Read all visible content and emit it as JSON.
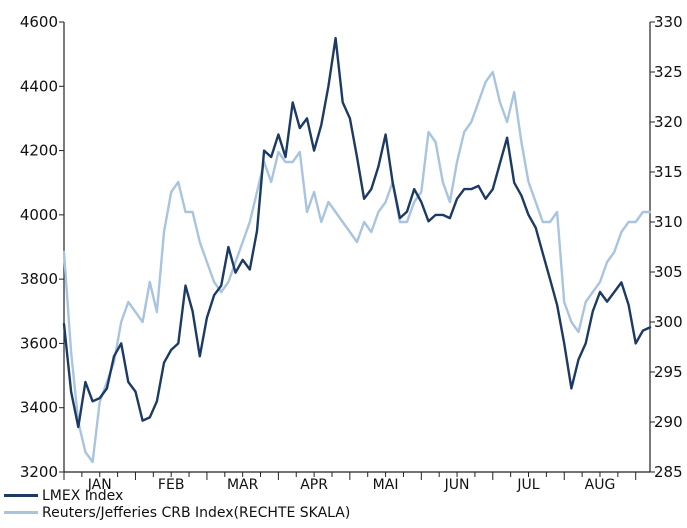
{
  "chart_data": {
    "type": "line",
    "title": "",
    "xlabel": "",
    "ylabel": "",
    "x_ticks": [
      "JAN",
      "FEB",
      "MAR",
      "APR",
      "MAI",
      "JUN",
      "JUL",
      "AUG"
    ],
    "x_range": [
      0,
      8.2
    ],
    "y_left": {
      "range": [
        3200,
        4600
      ],
      "ticks": [
        3200,
        3400,
        3600,
        3800,
        4000,
        4200,
        4400,
        4600
      ]
    },
    "y_right": {
      "range": [
        285,
        330
      ],
      "ticks": [
        285,
        290,
        295,
        300,
        305,
        310,
        315,
        320,
        325,
        330
      ]
    },
    "legend_position": "bottom-left",
    "grid": false,
    "series": [
      {
        "name": "LMEX Index",
        "axis": "left",
        "color": "#1c3a66",
        "x": [
          0.0,
          0.1,
          0.2,
          0.3,
          0.4,
          0.5,
          0.6,
          0.7,
          0.8,
          0.9,
          1.0,
          1.1,
          1.2,
          1.3,
          1.4,
          1.5,
          1.6,
          1.7,
          1.8,
          1.9,
          2.0,
          2.1,
          2.2,
          2.3,
          2.4,
          2.5,
          2.6,
          2.7,
          2.8,
          2.9,
          3.0,
          3.1,
          3.2,
          3.3,
          3.4,
          3.5,
          3.6,
          3.7,
          3.8,
          3.9,
          4.0,
          4.1,
          4.2,
          4.3,
          4.4,
          4.5,
          4.6,
          4.7,
          4.8,
          4.9,
          5.0,
          5.1,
          5.2,
          5.3,
          5.4,
          5.5,
          5.6,
          5.7,
          5.8,
          5.9,
          6.0,
          6.1,
          6.2,
          6.3,
          6.4,
          6.5,
          6.6,
          6.7,
          6.8,
          6.9,
          7.0,
          7.1,
          7.2,
          7.3,
          7.4,
          7.5,
          7.6,
          7.7,
          7.8,
          7.9,
          8.0,
          8.1,
          8.2
        ],
        "y": [
          3660,
          3450,
          3340,
          3480,
          3420,
          3430,
          3460,
          3560,
          3600,
          3480,
          3450,
          3360,
          3370,
          3420,
          3540,
          3580,
          3600,
          3780,
          3700,
          3560,
          3680,
          3750,
          3780,
          3900,
          3820,
          3860,
          3830,
          3950,
          4200,
          4180,
          4250,
          4180,
          4350,
          4270,
          4300,
          4200,
          4280,
          4400,
          4550,
          4350,
          4300,
          4180,
          4050,
          4080,
          4150,
          4250,
          4100,
          3990,
          4010,
          4080,
          4040,
          3980,
          4000,
          4000,
          3990,
          4050,
          4080,
          4080,
          4090,
          4050,
          4080,
          4160,
          4240,
          4100,
          4060,
          4000,
          3960,
          3880,
          3800,
          3720,
          3600,
          3460,
          3550,
          3600,
          3700,
          3760,
          3730,
          3760,
          3790,
          3720,
          3600,
          3640,
          3650
        ]
      },
      {
        "name": "Reuters/Jefferies CRB Index(RECHTE SKALA)",
        "axis": "right",
        "color": "#a9c4df",
        "x": [
          0.0,
          0.1,
          0.2,
          0.3,
          0.4,
          0.5,
          0.6,
          0.7,
          0.8,
          0.9,
          1.0,
          1.1,
          1.2,
          1.3,
          1.4,
          1.5,
          1.6,
          1.7,
          1.8,
          1.9,
          2.0,
          2.1,
          2.2,
          2.3,
          2.4,
          2.5,
          2.6,
          2.7,
          2.8,
          2.9,
          3.0,
          3.1,
          3.2,
          3.3,
          3.4,
          3.5,
          3.6,
          3.7,
          3.8,
          3.9,
          4.0,
          4.1,
          4.2,
          4.3,
          4.4,
          4.5,
          4.6,
          4.7,
          4.8,
          4.9,
          5.0,
          5.1,
          5.2,
          5.3,
          5.4,
          5.5,
          5.6,
          5.7,
          5.8,
          5.9,
          6.0,
          6.1,
          6.2,
          6.3,
          6.4,
          6.5,
          6.6,
          6.7,
          6.8,
          6.9,
          7.0,
          7.1,
          7.2,
          7.3,
          7.4,
          7.5,
          7.6,
          7.7,
          7.8,
          7.9,
          8.0,
          8.1,
          8.2
        ],
        "y": [
          307,
          297,
          290,
          287,
          286,
          292,
          294,
          296,
          300,
          302,
          301,
          300,
          304,
          301,
          309,
          313,
          314,
          311,
          311,
          308,
          306,
          304,
          303,
          304,
          306,
          308,
          310,
          313,
          316,
          314,
          317,
          316,
          316,
          317,
          311,
          313,
          310,
          312,
          311,
          310,
          309,
          308,
          310,
          309,
          311,
          312,
          314,
          310,
          310,
          312,
          313,
          319,
          318,
          314,
          312,
          316,
          319,
          320,
          322,
          324,
          325,
          322,
          320,
          323,
          318,
          314,
          312,
          310,
          310,
          311,
          302,
          300,
          299,
          302,
          303,
          304,
          306,
          307,
          309,
          310,
          310,
          311,
          311
        ]
      }
    ]
  }
}
